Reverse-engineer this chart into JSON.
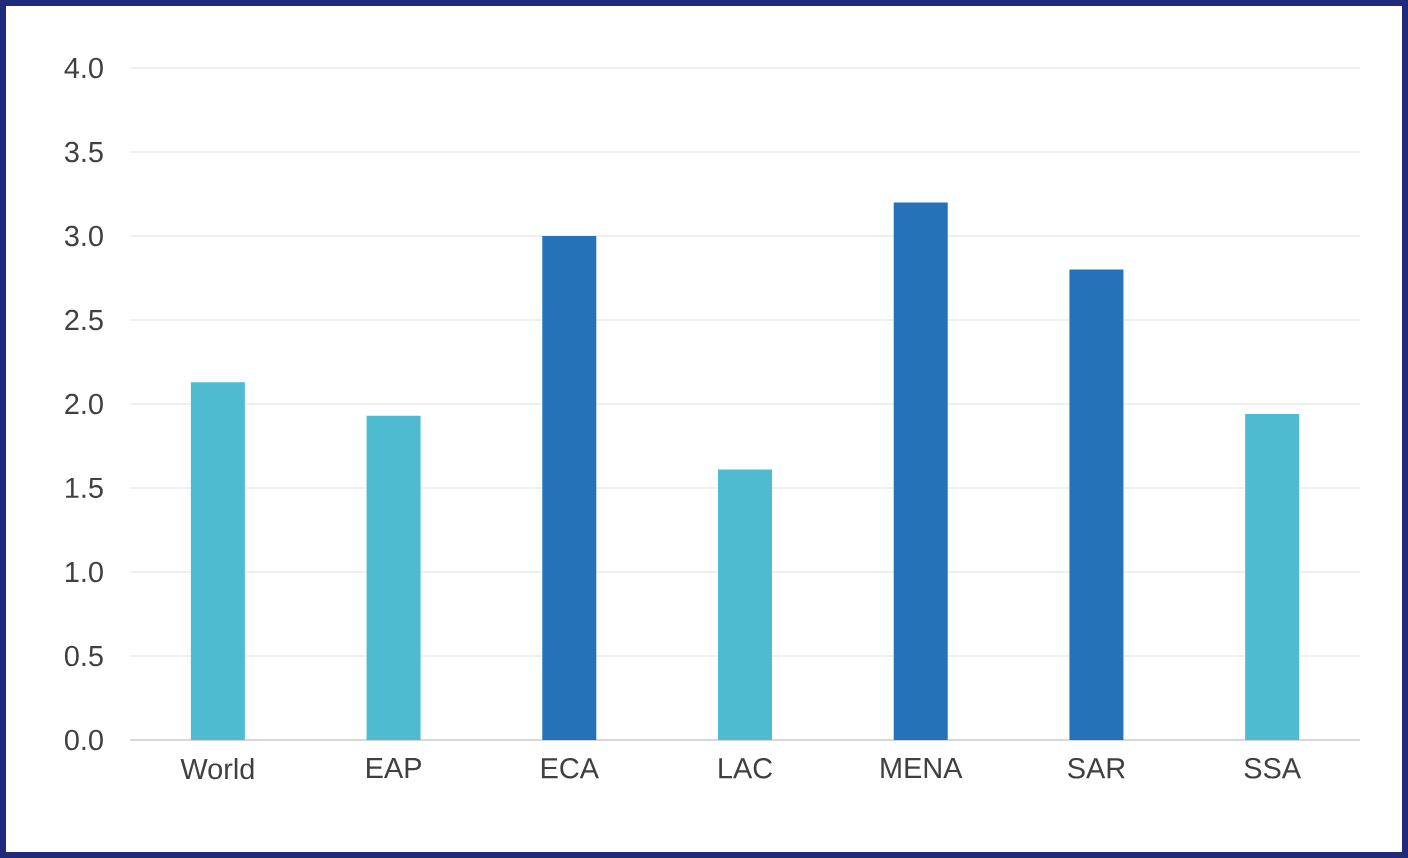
{
  "chart_data": {
    "type": "bar",
    "categories": [
      "World",
      "EAP",
      "ECA",
      "LAC",
      "MENA",
      "SAR",
      "SSA"
    ],
    "values": [
      2.13,
      1.93,
      3.0,
      1.61,
      3.2,
      2.8,
      1.94
    ],
    "colors": [
      "#4ebbd0",
      "#4ebbd0",
      "#2672b9",
      "#4ebbd0",
      "#2672b9",
      "#2672b9",
      "#4ebbd0"
    ],
    "ylim": [
      0,
      4.0
    ],
    "yticks": [
      {
        "value": 0,
        "label": "0.0"
      },
      {
        "value": 0.5,
        "label": "0.5"
      },
      {
        "value": 1.0,
        "label": "1.0"
      },
      {
        "value": 1.5,
        "label": "1.5"
      },
      {
        "value": 2.0,
        "label": "2.0"
      },
      {
        "value": 2.5,
        "label": "2.5"
      },
      {
        "value": 3.0,
        "label": "3.0"
      },
      {
        "value": 3.5,
        "label": "3.5"
      },
      {
        "value": 4.0,
        "label": "4.0"
      }
    ],
    "grid": "y"
  }
}
